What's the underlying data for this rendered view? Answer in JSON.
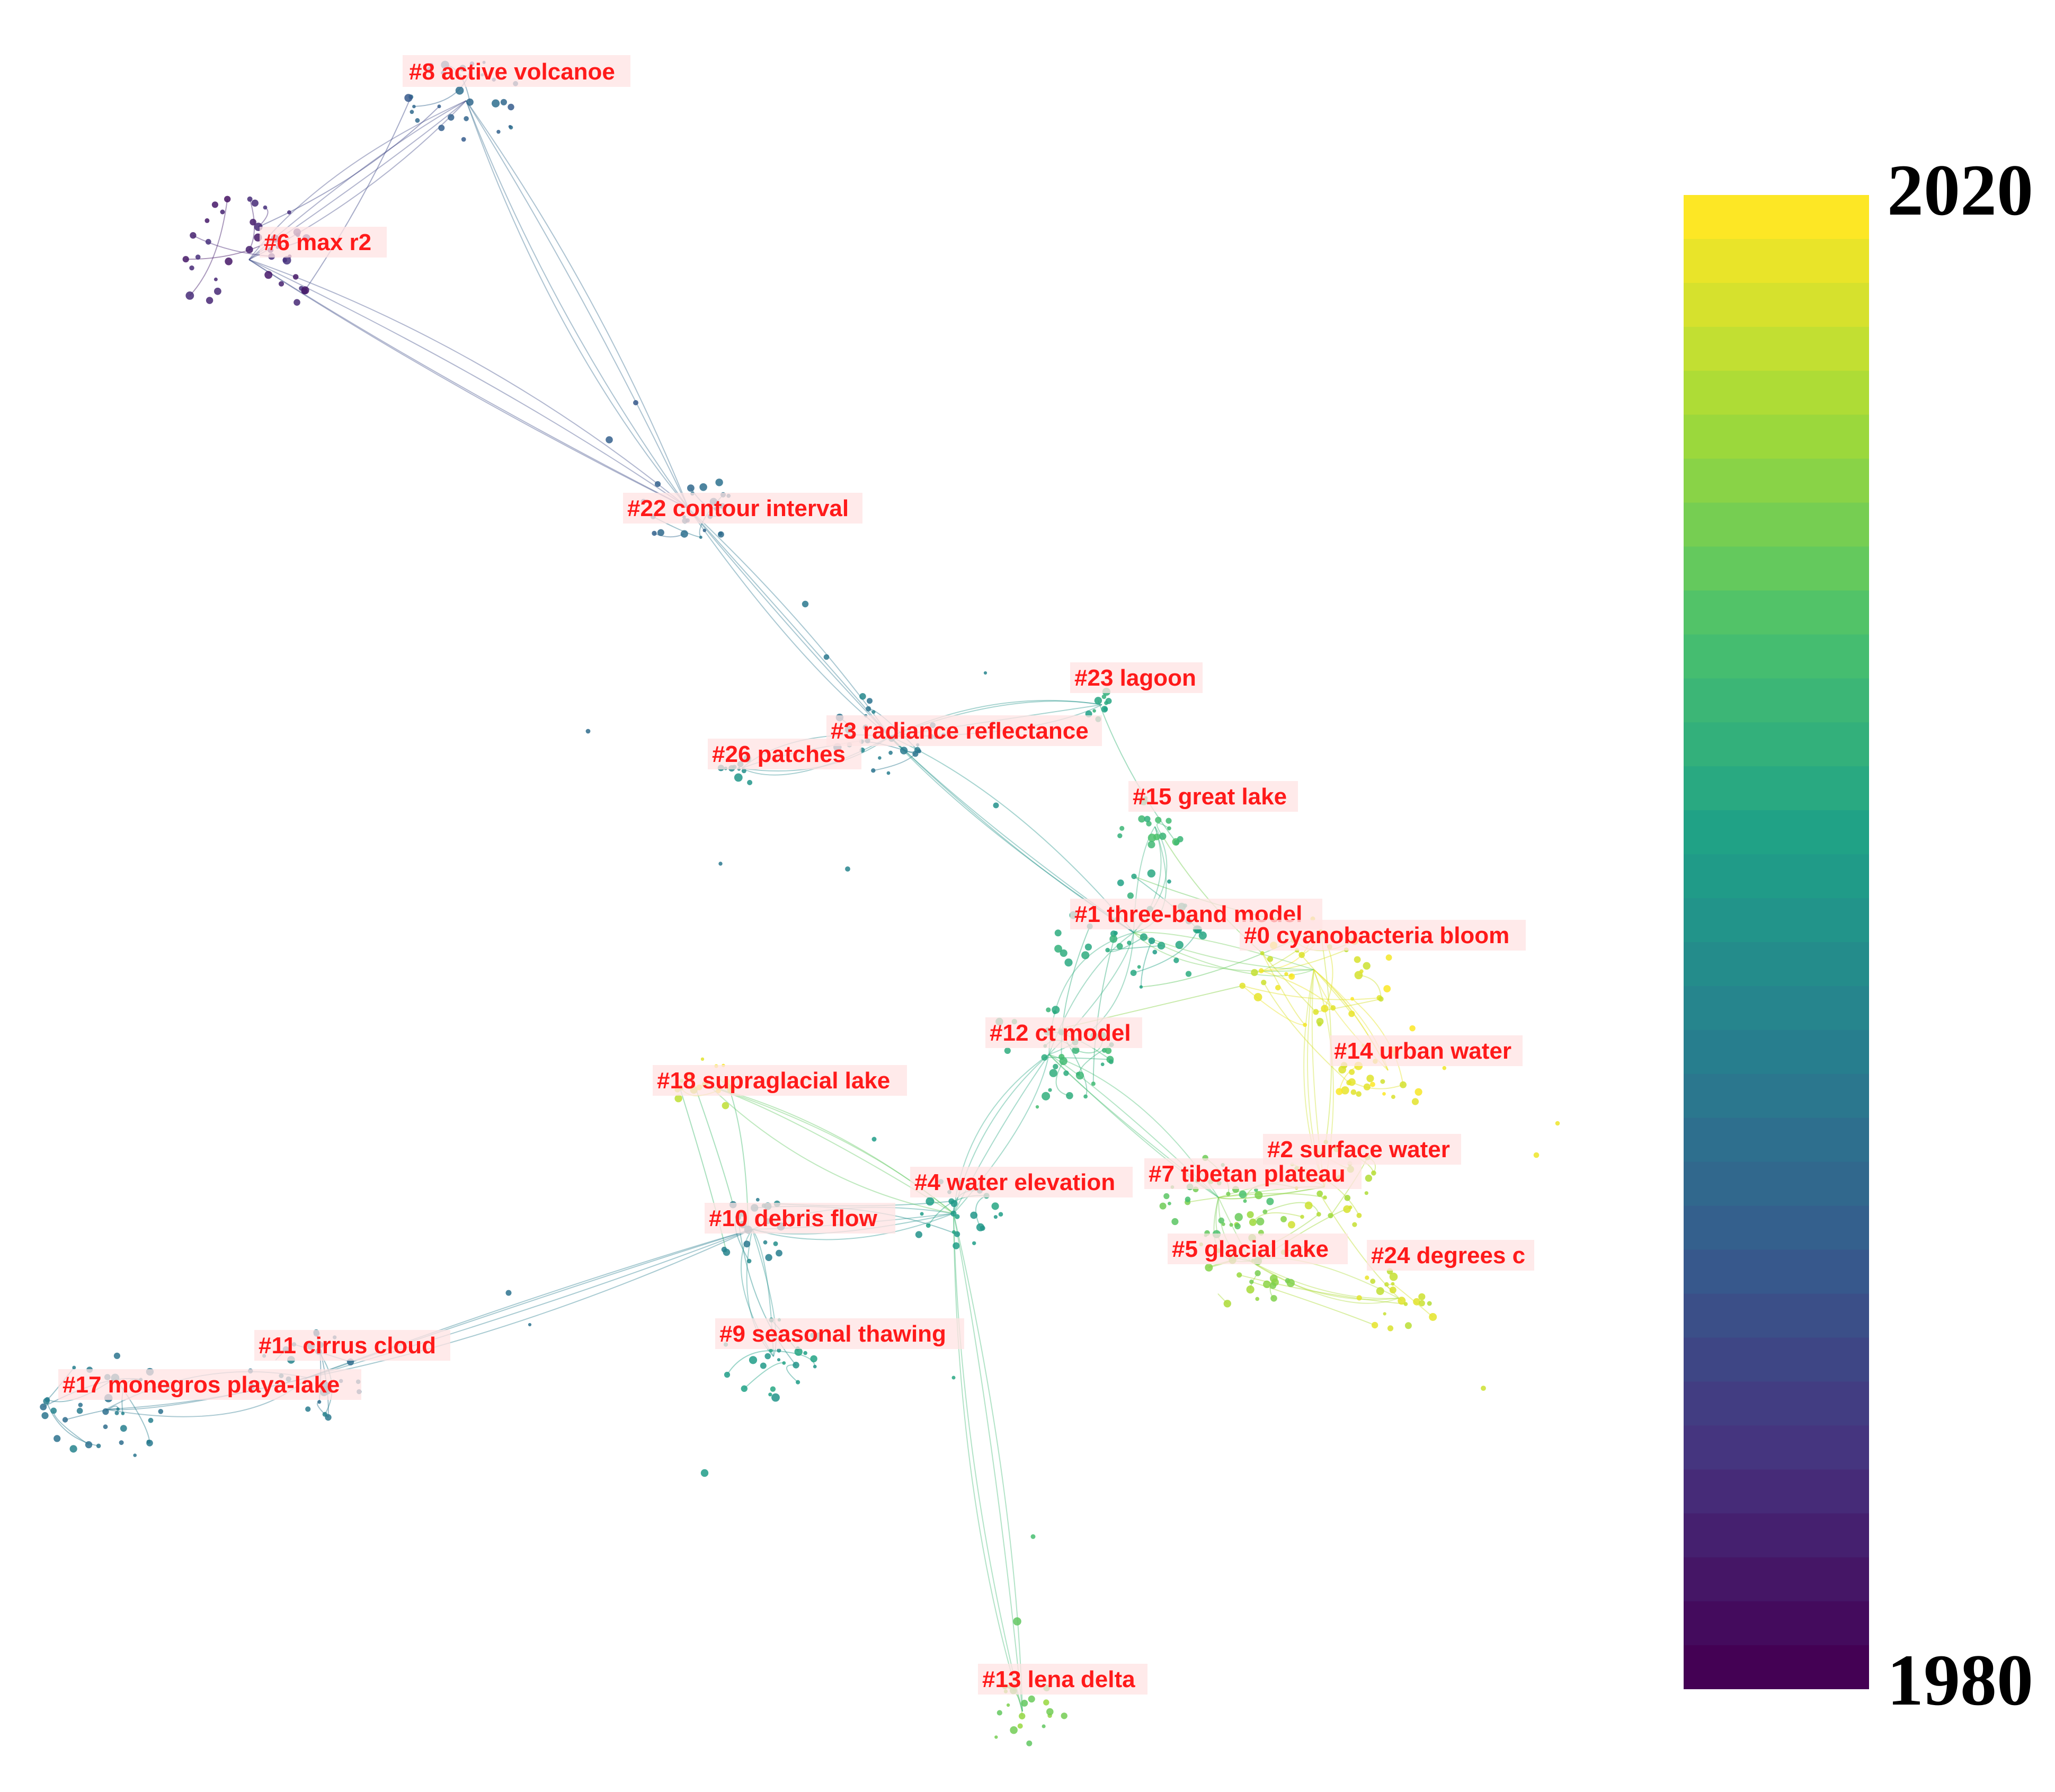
{
  "colorbar": {
    "max_label": "2020",
    "min_label": "1980",
    "stops": [
      "#440154",
      "#46327e",
      "#365c8d",
      "#277f8e",
      "#1fa187",
      "#4ac16d",
      "#a0da39",
      "#fde725"
    ],
    "steps": 34
  },
  "colors": {
    "label": "#ff1a1a",
    "label_bg": "#ffe3e3"
  },
  "clusters": [
    {
      "id": "0",
      "label": "#0 cyanobacteria bloom",
      "year": 2018
    },
    {
      "id": "1",
      "label": "#1 three-band model",
      "year": 2004
    },
    {
      "id": "2",
      "label": "#2 surface water",
      "year": 2016
    },
    {
      "id": "3",
      "label": "#3 radiance reflectance",
      "year": 1997
    },
    {
      "id": "4",
      "label": "#4 water elevation",
      "year": 2002
    },
    {
      "id": "5",
      "label": "#5 glacial lake",
      "year": 2013
    },
    {
      "id": "6",
      "label": "#6 max r2",
      "year": 1984
    },
    {
      "id": "7",
      "label": "#7 tibetan plateau",
      "year": 2010
    },
    {
      "id": "8",
      "label": "#8 active volcanoe",
      "year": 1993
    },
    {
      "id": "9",
      "label": "#9 seasonal thawing",
      "year": 2002
    },
    {
      "id": "10",
      "label": "#10 debris flow",
      "year": 1998
    },
    {
      "id": "11",
      "label": "#11 cirrus cloud",
      "year": 1996
    },
    {
      "id": "12",
      "label": "#12 ct model",
      "year": 2006
    },
    {
      "id": "13",
      "label": "#13 lena delta",
      "year": 2012
    },
    {
      "id": "14",
      "label": "#14 urban water",
      "year": 2019
    },
    {
      "id": "15",
      "label": "#15 great lake",
      "year": 2007
    },
    {
      "id": "17",
      "label": "#17 monegros playa-lake",
      "year": 1996
    },
    {
      "id": "18",
      "label": "#18 supraglacial lake",
      "year": 2018
    },
    {
      "id": "22",
      "label": "#22 contour interval",
      "year": 1994
    },
    {
      "id": "23",
      "label": "#23 lagoon",
      "year": 2004
    },
    {
      "id": "24",
      "label": "#24 degrees c",
      "year": 2017
    },
    {
      "id": "26",
      "label": "#26 patches",
      "year": 2000
    }
  ]
}
